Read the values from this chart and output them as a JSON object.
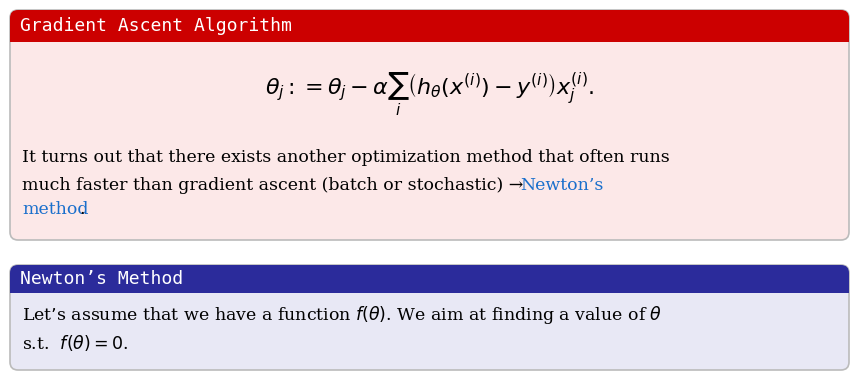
{
  "box1_header_color": "#cc0000",
  "box1_body_color": "#fce8e8",
  "box1_title": "Gradient Ascent Algorithm",
  "box1_formula": "$\\theta_j := \\theta_j - \\alpha \\sum_{i} \\left( h_\\theta(x^{(i)}) - y^{(i)} \\right) x_j^{(i)}.$",
  "box1_text_line1": "It turns out that there exists another optimization method that often runs",
  "box1_text_line2_black": "much faster than gradient ascent (batch or stochastic) → ",
  "box1_text_line2_blue": "Newton’s",
  "box1_text_line3_blue": "method",
  "box1_text_line3_black": ".",
  "box2_header_color": "#2b2b9b",
  "box2_body_color": "#e8e8f5",
  "box2_title": "Newton’s Method",
  "box2_text": "Let’s assume that we have a function $f(\\theta)$. We aim at finding a value of $\\theta$",
  "box2_text2": "s.t.  $f(\\theta) = 0$.",
  "link_color": "#1a6fcc",
  "title_fontsize": 13,
  "body_fontsize": 13,
  "fig_bg": "#ffffff",
  "border_color": "#aaaaaa"
}
